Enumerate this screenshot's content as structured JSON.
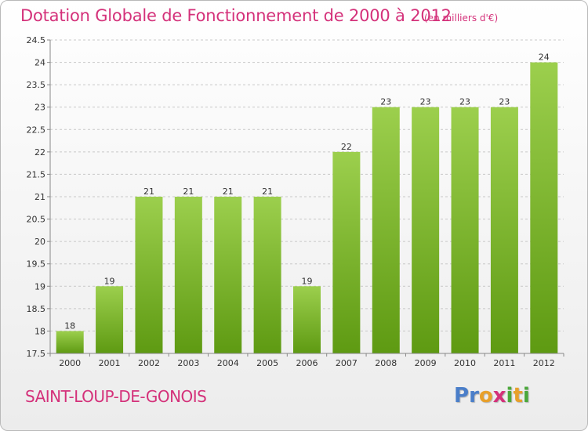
{
  "chart_data": {
    "type": "bar",
    "title": "Dotation Globale de Fonctionnement de 2000 à 2012",
    "subtitle": "(en milliers d'€)",
    "categories": [
      "2000",
      "2001",
      "2002",
      "2003",
      "2004",
      "2005",
      "2006",
      "2007",
      "2008",
      "2009",
      "2010",
      "2011",
      "2012"
    ],
    "values": [
      18,
      19,
      21,
      21,
      21,
      21,
      19,
      22,
      23,
      23,
      23,
      23,
      24
    ],
    "value_labels": [
      "18",
      "19",
      "21",
      "21",
      "21",
      "21",
      "19",
      "22",
      "23",
      "23",
      "23",
      "23",
      "24"
    ],
    "ylim": [
      17.5,
      24.5
    ],
    "yticks": [
      "17.5",
      "18",
      "18.5",
      "19",
      "19.5",
      "20",
      "20.5",
      "21",
      "21.5",
      "22",
      "22.5",
      "23",
      "23.5",
      "24",
      "24.5"
    ],
    "grid": true,
    "colors": {
      "bar_top": "#9ccf4d",
      "bar_bottom": "#5e9a12",
      "grid": "#c8c8c8",
      "axis": "#888888"
    }
  },
  "footer": {
    "commune": "SAINT-LOUP-DE-GONOIS",
    "logo_letters": [
      "P",
      "r",
      "o",
      "x",
      "i",
      "t",
      "i"
    ],
    "logo_colors": [
      "#4a7ec9",
      "#4a7ec9",
      "#e8a02a",
      "#d4317a",
      "#4aa83a",
      "#e8a02a",
      "#4aa83a"
    ]
  }
}
